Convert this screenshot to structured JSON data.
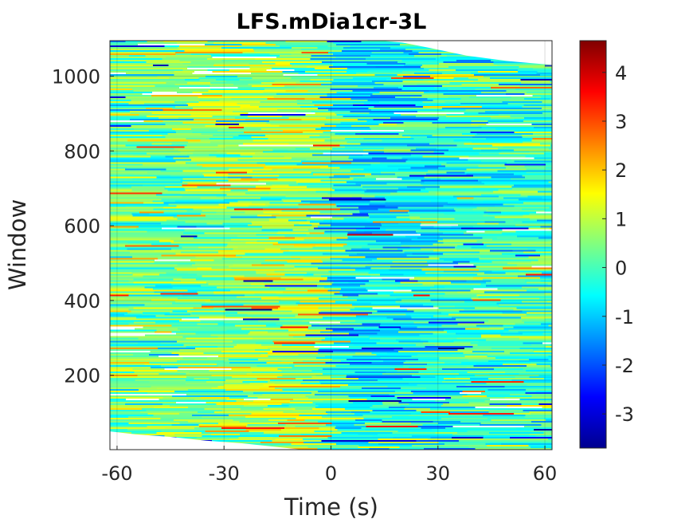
{
  "chart_data": {
    "type": "heatmap",
    "title": "LFS.mDia1cr-3L",
    "xlabel": "Time (s)",
    "ylabel": "Window",
    "xlim": [
      -62,
      62
    ],
    "ylim": [
      1,
      1095
    ],
    "xticks": [
      -60,
      -30,
      0,
      30,
      60
    ],
    "yticks": [
      200,
      400,
      600,
      800,
      1000
    ],
    "colorbar": {
      "colormap": "jet",
      "range": [
        -3.7,
        4.65
      ],
      "ticks": [
        -3,
        -2,
        -1,
        0,
        1,
        2,
        3,
        4
      ]
    },
    "grid": true,
    "notes_visible": {
      "top_right_missing_region": true,
      "bottom_left_missing_region": true
    }
  }
}
